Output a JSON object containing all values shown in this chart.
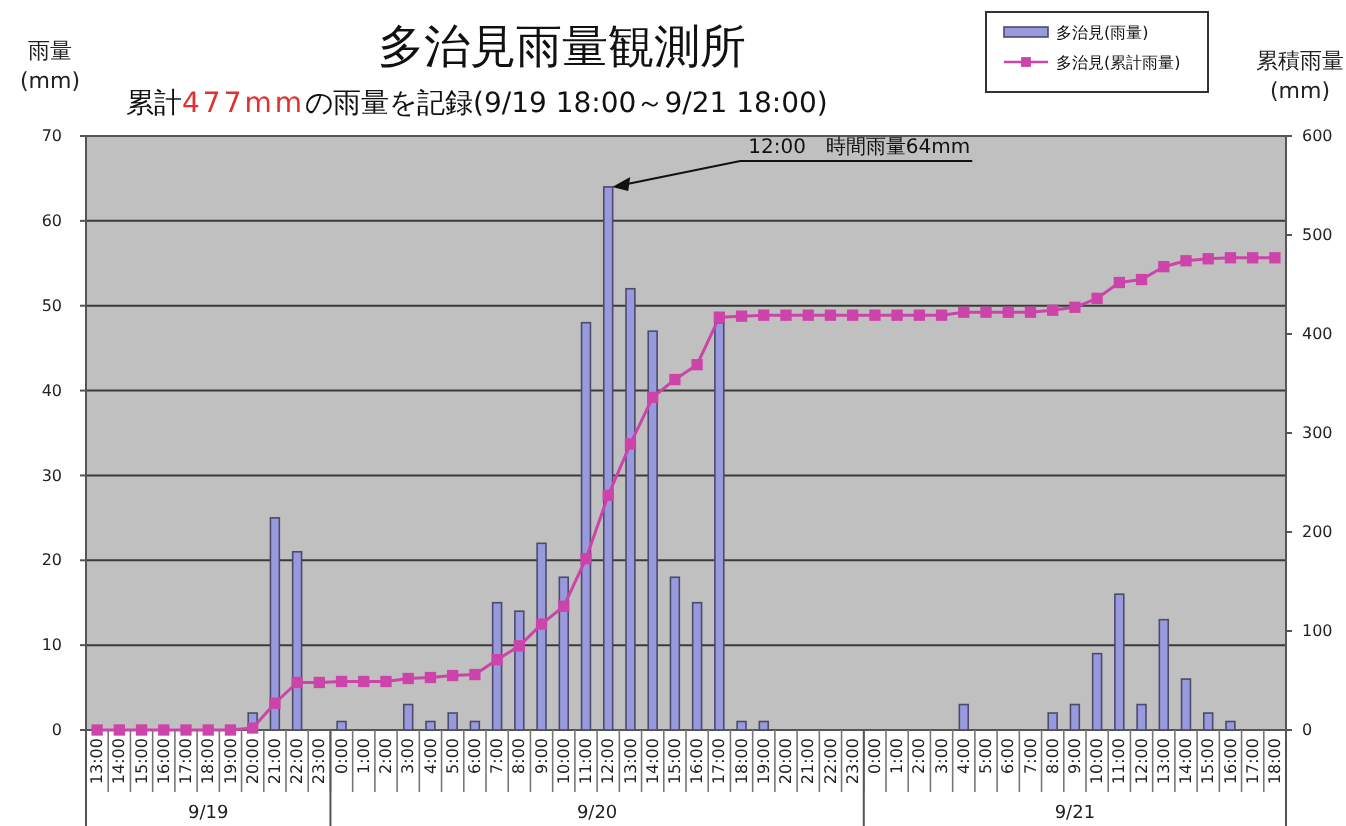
{
  "chart_data": {
    "type": "bar",
    "title": "多治見雨量観測所",
    "subtitle": "累計477mmの雨量を記録(9/19 18:00～9/21 18:00)",
    "ylabel": "雨量\n(mm)",
    "y2label": "累積雨量\n(mm)",
    "categories": [
      "13:00",
      "14:00",
      "15:00",
      "16:00",
      "17:00",
      "18:00",
      "19:00",
      "20:00",
      "21:00",
      "22:00",
      "23:00",
      "0:00",
      "1:00",
      "2:00",
      "3:00",
      "4:00",
      "5:00",
      "6:00",
      "7:00",
      "8:00",
      "9:00",
      "10:00",
      "11:00",
      "12:00",
      "13:00",
      "14:00",
      "15:00",
      "16:00",
      "17:00",
      "18:00",
      "19:00",
      "20:00",
      "21:00",
      "22:00",
      "23:00",
      "0:00",
      "1:00",
      "2:00",
      "3:00",
      "4:00",
      "5:00",
      "6:00",
      "7:00",
      "8:00",
      "9:00",
      "10:00",
      "11:00",
      "12:00",
      "13:00",
      "14:00",
      "15:00",
      "16:00",
      "17:00",
      "18:00"
    ],
    "ylim": [
      0,
      70
    ],
    "yticks": [
      0,
      10,
      20,
      30,
      40,
      50,
      60,
      70
    ],
    "y2lim": [
      0,
      600
    ],
    "y2ticks": [
      0,
      100,
      200,
      300,
      400,
      500,
      600
    ],
    "grid": "y",
    "legend": "top right",
    "marker": "square",
    "series": [
      {
        "name": "多治見(雨量)",
        "color": "#9999dd",
        "values": [
          null,
          null,
          null,
          null,
          null,
          null,
          null,
          2,
          25,
          21,
          0,
          1,
          0,
          0,
          3,
          1,
          2,
          1,
          15,
          14,
          22,
          18,
          48,
          64,
          52,
          47,
          18,
          15,
          48,
          1,
          1,
          0,
          0,
          0,
          0,
          0,
          0,
          0,
          0,
          3,
          0,
          0,
          0,
          2,
          3,
          9,
          16,
          3,
          13,
          6,
          2,
          1,
          0,
          0
        ]
      },
      {
        "name": "多治見(累計雨量)",
        "type": "line",
        "axis": "y2",
        "color": "#cc44aa",
        "values": [
          0,
          0,
          0,
          0,
          0,
          0,
          0,
          2,
          27,
          48,
          48,
          49,
          49,
          49,
          52,
          53,
          55,
          56,
          71,
          85,
          107,
          125,
          173,
          237,
          289,
          336,
          354,
          369,
          417,
          418,
          419,
          419,
          419,
          419,
          419,
          419,
          419,
          419,
          419,
          422,
          422,
          422,
          422,
          424,
          427,
          436,
          452,
          455,
          468,
          474,
          476,
          477,
          477,
          477
        ]
      }
    ],
    "annotations": [
      {
        "text": "12:00　時間雨量64mm",
        "x": "12:00",
        "y": 64
      },
      "9/19",
      "9/20",
      "9/21"
    ]
  }
}
